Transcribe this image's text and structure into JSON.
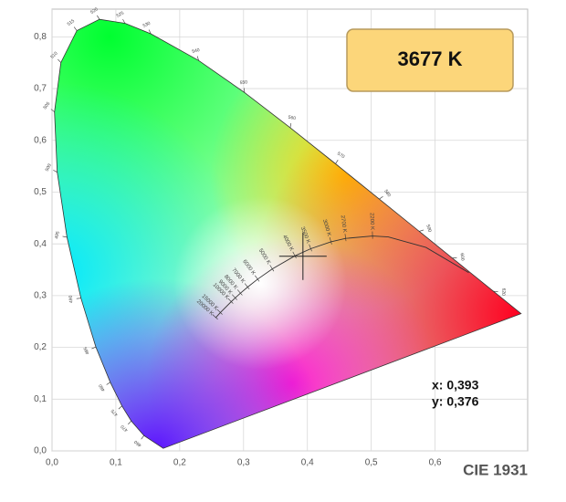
{
  "chart_data": {
    "type": "chromaticity",
    "title": "CIE 1931",
    "badge": "3677 K",
    "badge_color": "#fcd67a",
    "xlim": [
      0,
      0.745
    ],
    "ylim": [
      0,
      0.85
    ],
    "xticks": [
      {
        "value": 0,
        "label": "0,0"
      },
      {
        "value": 0.1,
        "label": "0,1"
      },
      {
        "value": 0.2,
        "label": "0,2"
      },
      {
        "value": 0.3,
        "label": "0,3"
      },
      {
        "value": 0.4,
        "label": "0,4"
      },
      {
        "value": 0.5,
        "label": "0,5"
      },
      {
        "value": 0.6,
        "label": "0,6"
      }
    ],
    "yticks": [
      {
        "value": 0,
        "label": "0,0"
      },
      {
        "value": 0.1,
        "label": "0,1"
      },
      {
        "value": 0.2,
        "label": "0,2"
      },
      {
        "value": 0.3,
        "label": "0,3"
      },
      {
        "value": 0.4,
        "label": "0,4"
      },
      {
        "value": 0.5,
        "label": "0,5"
      },
      {
        "value": 0.6,
        "label": "0,6"
      },
      {
        "value": 0.7,
        "label": "0,7"
      },
      {
        "value": 0.8,
        "label": "0,8"
      }
    ],
    "grid": true,
    "point": {
      "x": 0.393,
      "y": 0.376,
      "x_label": "x: 0,393",
      "y_label": "y: 0,376"
    },
    "spectral_locus": {
      "x": [
        0.1741,
        0.144,
        0.1241,
        0.1096,
        0.0913,
        0.0687,
        0.0454,
        0.0235,
        0.0082,
        0.0039,
        0.0139,
        0.0389,
        0.0743,
        0.1142,
        0.1547,
        0.2296,
        0.3016,
        0.3731,
        0.4441,
        0.5125,
        0.5752,
        0.627,
        0.6915,
        0.7347
      ],
      "y": [
        0.005,
        0.0297,
        0.0578,
        0.0868,
        0.1327,
        0.2007,
        0.295,
        0.4127,
        0.5384,
        0.6548,
        0.7502,
        0.812,
        0.8338,
        0.8262,
        0.8059,
        0.7543,
        0.6923,
        0.6245,
        0.5547,
        0.4866,
        0.4242,
        0.3725,
        0.3083,
        0.2653
      ],
      "labels": [
        null,
        "460",
        "470",
        "475",
        "480",
        "485",
        "490",
        "495",
        "500",
        "505",
        "510",
        "515",
        "520",
        "525",
        "530",
        "540",
        "550",
        "560",
        "570",
        "580",
        "590",
        "600",
        "620",
        null
      ]
    },
    "planckian_locus": {
      "x": [
        0.6528,
        0.5857,
        0.5267,
        0.502,
        0.4599,
        0.4369,
        0.4053,
        0.3805,
        0.3451,
        0.3221,
        0.3064,
        0.2952,
        0.2869,
        0.2807,
        0.2637,
        0.2565
      ],
      "y": [
        0.3444,
        0.3931,
        0.4133,
        0.4152,
        0.4106,
        0.4041,
        0.3907,
        0.3768,
        0.3516,
        0.3318,
        0.3166,
        0.3048,
        0.2956,
        0.2884,
        0.2673,
        0.2577
      ],
      "labels": [
        null,
        null,
        null,
        "2200 K",
        "2700 K",
        "3000 K",
        "3500 K",
        "4000 K",
        "5000 K",
        "6000 K",
        "7000 K",
        "8000 K",
        "9000 K",
        "10000 K",
        "15000 K",
        "20000 K"
      ]
    }
  }
}
